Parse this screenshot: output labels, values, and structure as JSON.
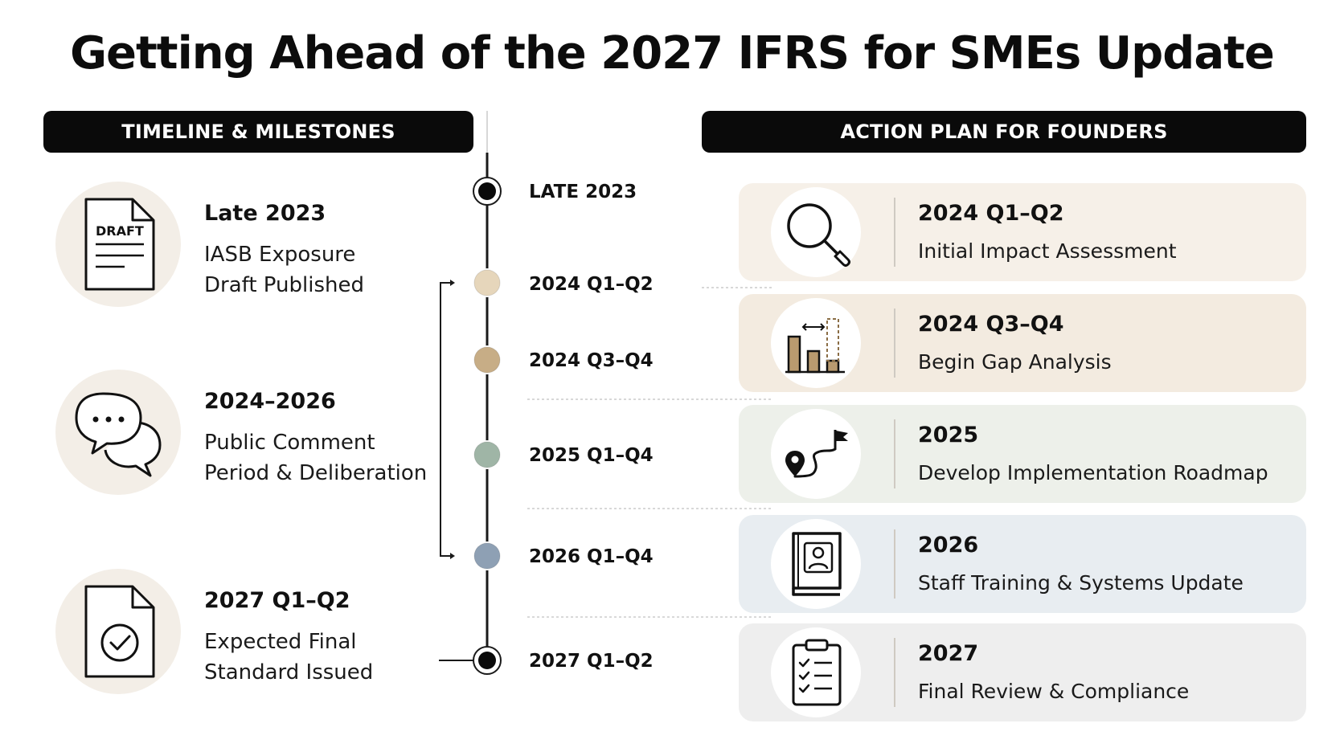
{
  "title": "Getting Ahead of the 2027 IFRS for SMEs Update",
  "left_header": "TIMELINE & MILESTONES",
  "right_header": "ACTION PLAN FOR FOUNDERS",
  "milestones": [
    {
      "title": "Late 2023",
      "desc_line1": "IASB Exposure",
      "desc_line2": "Draft Published",
      "icon": "draft-document-icon",
      "icon_text": "DRAFT"
    },
    {
      "title": "2024–2026",
      "desc_line1": "Public Comment",
      "desc_line2": "Period & Deliberation",
      "icon": "speech-bubbles-icon"
    },
    {
      "title": "2027 Q1–Q2",
      "desc_line1": "Expected Final",
      "desc_line2": "Standard Issued",
      "icon": "document-check-icon"
    }
  ],
  "timeline": [
    {
      "label": "LATE 2023",
      "color": "#0a0a0a"
    },
    {
      "label": "2024 Q1–Q2",
      "color": "#e6d6bb"
    },
    {
      "label": "2024 Q3–Q4",
      "color": "#c7ad86"
    },
    {
      "label": "2025 Q1–Q4",
      "color": "#9fb5a6"
    },
    {
      "label": "2026 Q1–Q4",
      "color": "#8ea0b4"
    },
    {
      "label": "2027 Q1–Q2",
      "color": "#0a0a0a"
    }
  ],
  "actions": [
    {
      "title": "2024 Q1–Q2",
      "desc": "Initial Impact Assessment",
      "icon": "magnifier-icon",
      "bg": "#f6f0e8"
    },
    {
      "title": "2024 Q3–Q4",
      "desc": "Begin Gap Analysis",
      "icon": "bar-gap-chart-icon",
      "bg": "#f3ebe0"
    },
    {
      "title": "2025",
      "desc": "Develop Implementation Roadmap",
      "icon": "roadmap-route-icon",
      "bg": "#edf0ea"
    },
    {
      "title": "2026",
      "desc": "Staff Training & Systems Update",
      "icon": "training-manual-icon",
      "bg": "#e8edf1"
    },
    {
      "title": "2027",
      "desc": "Final Review & Compliance",
      "icon": "checklist-clipboard-icon",
      "bg": "#eeeeee"
    }
  ]
}
